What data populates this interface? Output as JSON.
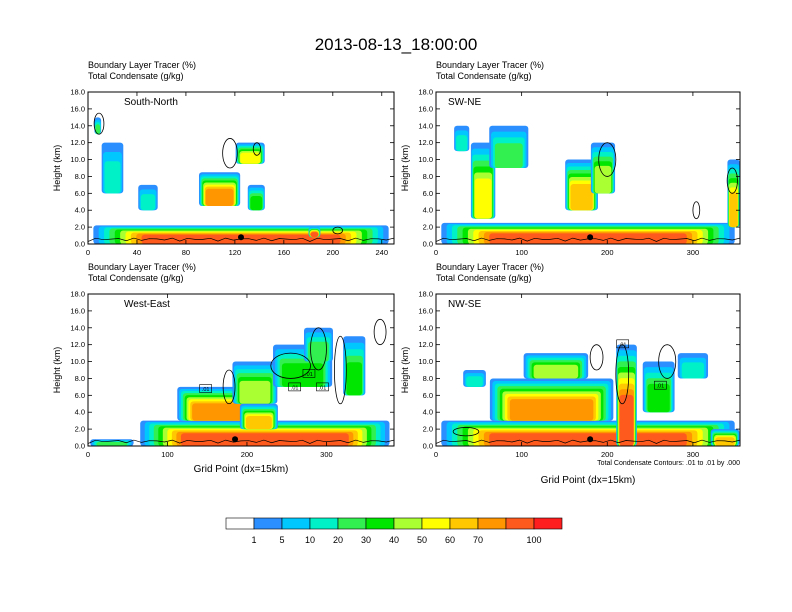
{
  "title": "2013-08-13_18:00:00",
  "colors": {
    "contour": "#000000",
    "frame": "#000000",
    "background": "#ffffff"
  },
  "chart_data": [
    {
      "type": "heatmap",
      "cross_section": "South-North",
      "header": [
        "Boundary Layer Tracer   (%)",
        "Total Condensate   (g/kg)"
      ],
      "ylabel": "Height (km)",
      "xlabel": "",
      "xlim": [
        0,
        250
      ],
      "ylim": [
        0,
        18
      ],
      "xticks": [
        0,
        40,
        80,
        120,
        160,
        200,
        240
      ],
      "xtick_labels": [
        "0",
        "40",
        "80",
        "120",
        "160",
        "200",
        "240"
      ],
      "yticks": [
        0,
        2,
        4,
        6,
        8,
        10,
        12,
        14,
        16,
        18
      ],
      "ytick_labels": [
        "0.0",
        "2.0",
        "4.0",
        "6.0",
        "8.0",
        "10.0",
        "12.0",
        "14.0",
        "16.0",
        "18.0"
      ],
      "plumes": [
        [
          0,
          250,
          0,
          2.2,
          85
        ],
        [
          90,
          35,
          4.5,
          4,
          70
        ],
        [
          120,
          25,
          9.5,
          2.5,
          50
        ],
        [
          10,
          20,
          6,
          6,
          15
        ],
        [
          40,
          18,
          4,
          3,
          12
        ],
        [
          130,
          15,
          4,
          3,
          30
        ],
        [
          5,
          6,
          13,
          2,
          25
        ],
        [
          180,
          10,
          0.8,
          1.2,
          90
        ]
      ],
      "contours": [
        [
          110,
          12,
          9,
          3.5
        ],
        [
          135,
          6,
          10.5,
          1.5
        ],
        [
          5,
          8,
          13,
          2.5
        ],
        [
          200,
          8,
          1.2,
          0.8
        ]
      ],
      "markers": [
        [
          125,
          0.8
        ]
      ],
      "boxed_labels": []
    },
    {
      "type": "heatmap",
      "cross_section": "SW-NE",
      "header": [
        "Boundary Layer Tracer   (%)",
        "Total Condensate   (g/kg)"
      ],
      "ylabel": "Height (km)",
      "xlabel": "",
      "xlim": [
        0,
        355
      ],
      "ylim": [
        0,
        18
      ],
      "xticks": [
        0,
        100,
        200,
        300
      ],
      "xtick_labels": [
        "0",
        "100",
        "200",
        "300"
      ],
      "yticks": [
        0,
        2,
        4,
        6,
        8,
        10,
        12,
        14,
        16,
        18
      ],
      "ytick_labels": [
        "0.0",
        "2.0",
        "4.0",
        "6.0",
        "8.0",
        "10.0",
        "12.0",
        "14.0",
        "16.0",
        "18.0"
      ],
      "plumes": [
        [
          0,
          355,
          0,
          2.5,
          85
        ],
        [
          40,
          30,
          3,
          9,
          55
        ],
        [
          150,
          40,
          4,
          6,
          60
        ],
        [
          180,
          30,
          6,
          6,
          40
        ],
        [
          340,
          15,
          2,
          8,
          60
        ],
        [
          60,
          50,
          9,
          5,
          20
        ],
        [
          20,
          20,
          11,
          3,
          12
        ]
      ],
      "contours": [
        [
          190,
          20,
          8,
          4
        ],
        [
          300,
          8,
          3,
          2
        ],
        [
          340,
          12,
          6,
          3
        ]
      ],
      "markers": [
        [
          180,
          0.8
        ]
      ],
      "boxed_labels": []
    },
    {
      "type": "heatmap",
      "cross_section": "West-East",
      "header": [
        "Boundary Layer Tracer   (%)",
        "Total Condensate   (g/kg)"
      ],
      "ylabel": "Height (km)",
      "xlabel": "Grid Point (dx=15km)",
      "xlim": [
        0,
        385
      ],
      "ylim": [
        0,
        18
      ],
      "xticks": [
        0,
        100,
        200,
        300
      ],
      "xtick_labels": [
        "0",
        "100",
        "200",
        "300"
      ],
      "yticks": [
        0,
        2,
        4,
        6,
        8,
        10,
        12,
        14,
        16,
        18
      ],
      "ytick_labels": [
        "0.0",
        "2.0",
        "4.0",
        "6.0",
        "8.0",
        "10.0",
        "12.0",
        "14.0",
        "16.0",
        "18.0"
      ],
      "plumes": [
        [
          60,
          325,
          0,
          3,
          85
        ],
        [
          110,
          120,
          3,
          4,
          70
        ],
        [
          180,
          60,
          5,
          5,
          40
        ],
        [
          230,
          80,
          7,
          5,
          30
        ],
        [
          270,
          40,
          10,
          4,
          20
        ],
        [
          320,
          30,
          6,
          7,
          35
        ],
        [
          190,
          50,
          2,
          3,
          60
        ],
        [
          0,
          60,
          0,
          0.8,
          25
        ]
      ],
      "contours": [
        [
          230,
          50,
          8,
          3
        ],
        [
          280,
          20,
          9,
          5
        ],
        [
          310,
          15,
          5,
          8
        ],
        [
          170,
          15,
          5,
          4
        ],
        [
          360,
          15,
          12,
          3
        ]
      ],
      "markers": [
        [
          185,
          0.8
        ]
      ],
      "boxed_labels": [
        {
          "x": 148,
          "y": 6.8,
          "text": ".01"
        },
        {
          "x": 260,
          "y": 7.0,
          "text": ".01"
        },
        {
          "x": 278,
          "y": 8.6,
          "text": ".01"
        },
        {
          "x": 295,
          "y": 7.0,
          "text": ".01"
        }
      ]
    },
    {
      "type": "heatmap",
      "cross_section": "NW-SE",
      "header": [
        "Boundary Layer Tracer   (%)",
        "Total Condensate   (g/kg)"
      ],
      "ylabel": "Height (km)",
      "xlabel": "Grid Point (dx=15km)",
      "note": "Total Condensate Contours: .01 to .01 by .000",
      "xlim": [
        0,
        355
      ],
      "ylim": [
        0,
        18
      ],
      "xticks": [
        0,
        100,
        200,
        300
      ],
      "xtick_labels": [
        "0",
        "100",
        "200",
        "300"
      ],
      "yticks": [
        0,
        2,
        4,
        6,
        8,
        10,
        12,
        14,
        16,
        18
      ],
      "ytick_labels": [
        "0.0",
        "2.0",
        "4.0",
        "6.0",
        "8.0",
        "10.0",
        "12.0",
        "14.0",
        "16.0",
        "18.0"
      ],
      "plumes": [
        [
          0,
          355,
          0,
          3,
          85
        ],
        [
          60,
          150,
          3,
          5,
          75
        ],
        [
          100,
          80,
          8,
          3,
          40
        ],
        [
          210,
          25,
          0,
          12,
          90
        ],
        [
          240,
          40,
          4,
          6,
          30
        ],
        [
          320,
          35,
          0,
          2,
          60
        ],
        [
          30,
          30,
          7,
          2,
          12
        ],
        [
          280,
          40,
          8,
          3,
          15
        ]
      ],
      "contours": [
        [
          210,
          15,
          5,
          7
        ],
        [
          260,
          20,
          8,
          4
        ],
        [
          180,
          15,
          9,
          3
        ],
        [
          20,
          30,
          1.2,
          1
        ]
      ],
      "markers": [
        [
          180,
          0.8
        ]
      ],
      "boxed_labels": [
        {
          "x": 218,
          "y": 12.1,
          "text": ".01"
        },
        {
          "x": 262,
          "y": 7.2,
          "text": ".01"
        }
      ]
    }
  ],
  "colorbar": {
    "labels": [
      "1",
      "5",
      "10",
      "20",
      "30",
      "40",
      "50",
      "60",
      "70",
      "100"
    ],
    "colors": [
      "#ffffff",
      "#2b8fff",
      "#00c8ff",
      "#00f0c8",
      "#32f050",
      "#00e600",
      "#aaff32",
      "#ffff00",
      "#ffc800",
      "#ff9600",
      "#ff5a1e",
      "#ff1e1e"
    ]
  }
}
